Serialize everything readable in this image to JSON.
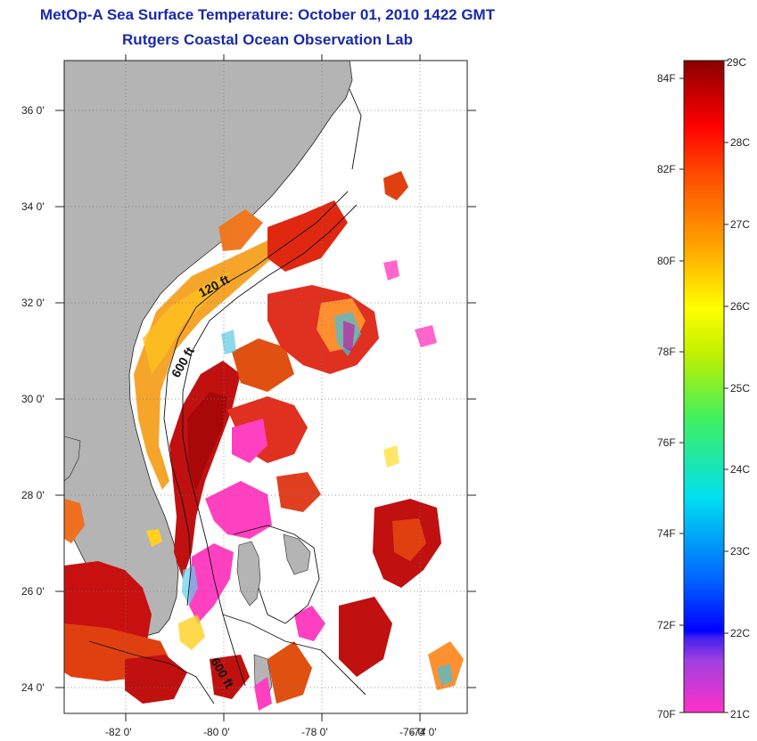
{
  "header": {
    "title": "MetOp-A Sea Surface Temperature:  October 01, 2010 1422 GMT",
    "subtitle": "Rutgers Coastal Ocean Observation Lab"
  },
  "map": {
    "lon_ticks": [
      "-82 0'",
      "-80 0'",
      "-78 0'",
      "-76 0'",
      "-74 0'"
    ],
    "lat_ticks": [
      "36 0'",
      "34 0'",
      "32 0'",
      "30 0'",
      "28 0'",
      "26 0'",
      "24 0'"
    ],
    "contour_labels": [
      "120 ft",
      "600 ft",
      "600 ft"
    ],
    "colors": {
      "land": "#b4b4b4",
      "water_missing": "#ffffff"
    }
  },
  "colorbar": {
    "fahrenheit": [
      "84F",
      "82F",
      "80F",
      "78F",
      "76F",
      "74F",
      "72F",
      "70F"
    ],
    "celsius": [
      "29C",
      "28C",
      "27C",
      "26C",
      "25C",
      "24C",
      "23C",
      "22C",
      "21C"
    ]
  }
}
